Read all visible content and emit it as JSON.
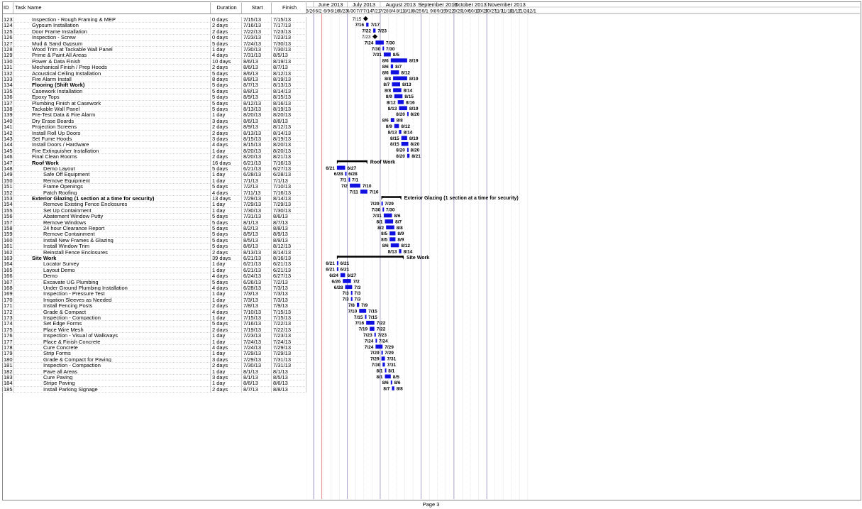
{
  "columns": {
    "id": "ID",
    "name": "Task Name",
    "duration": "Duration",
    "start": "Start",
    "finish": "Finish"
  },
  "months": [
    {
      "label": "June 2013",
      "start": "2013-06-01",
      "end": "2013-06-30"
    },
    {
      "label": "July 2013",
      "start": "2013-06-30",
      "end": "2013-07-28"
    },
    {
      "label": "August 2013",
      "start": "2013-07-28",
      "end": "2013-09-01"
    },
    {
      "label": "September 2013",
      "start": "2013-09-01",
      "end": "2013-09-29"
    },
    {
      "label": "October 2013",
      "start": "2013-09-29",
      "end": "2013-10-27"
    },
    {
      "label": "November 2013",
      "start": "2013-10-27",
      "end": "2013-11-30"
    }
  ],
  "weeks": [
    "5/26",
    "6/2",
    "6/9",
    "6/16",
    "6/23",
    "6/30",
    "7/7",
    "7/14",
    "7/21",
    "7/28",
    "8/4",
    "8/11",
    "8/18",
    "8/25",
    "9/1",
    "9/8",
    "9/15",
    "9/22",
    "9/29",
    "10/6",
    "10/13",
    "10/20",
    "10/27",
    "11/3",
    "11/10",
    "11/17",
    "11/24",
    "12/1"
  ],
  "timeline_start": "2013-05-26",
  "colors": {
    "bar": "#1010e0",
    "summary": "#000000",
    "milestone": "#000000",
    "today_line": "#e04040",
    "month_line": "#6a6ab0",
    "link": "#1010e0"
  },
  "footer": "Page 3",
  "tasks": [
    {
      "id": "123",
      "name": "Inspection - Rough Framing & MEP",
      "dur": "0 days",
      "start": "7/15/13",
      "finish": "7/15/13",
      "indent": 1,
      "type": "milestone",
      "s": "2013-07-15",
      "f": "2013-07-15",
      "ls": "7/15",
      "lf": ""
    },
    {
      "id": "124",
      "name": "Gypsum Installation",
      "dur": "2 days",
      "start": "7/16/13",
      "finish": "7/17/13",
      "indent": 1,
      "type": "task",
      "s": "2013-07-16",
      "f": "2013-07-17",
      "ls": "7/16",
      "lf": "7/17"
    },
    {
      "id": "125",
      "name": "Door Frame Installation",
      "dur": "2 days",
      "start": "7/22/13",
      "finish": "7/23/13",
      "indent": 1,
      "type": "task",
      "s": "2013-07-22",
      "f": "2013-07-23",
      "ls": "7/22",
      "lf": "7/23"
    },
    {
      "id": "126",
      "name": "Inspection - Screw",
      "dur": "0 days",
      "start": "7/23/13",
      "finish": "7/23/13",
      "indent": 1,
      "type": "milestone",
      "s": "2013-07-23",
      "f": "2013-07-23",
      "ls": "7/23",
      "lf": ""
    },
    {
      "id": "127",
      "name": "Mud & Sand Gypsum",
      "dur": "5 days",
      "start": "7/24/13",
      "finish": "7/30/13",
      "indent": 1,
      "type": "task",
      "s": "2013-07-24",
      "f": "2013-07-30",
      "ls": "7/24",
      "lf": "7/30"
    },
    {
      "id": "128",
      "name": "Wood Trim at Tackable Wall Panel",
      "dur": "1 day",
      "start": "7/30/13",
      "finish": "7/30/13",
      "indent": 1,
      "type": "task",
      "s": "2013-07-30",
      "f": "2013-07-30",
      "ls": "7/30",
      "lf": "7/30"
    },
    {
      "id": "129",
      "name": "Prime & Paint All Areas",
      "dur": "4 days",
      "start": "7/31/13",
      "finish": "8/5/13",
      "indent": 1,
      "type": "task",
      "s": "2013-07-31",
      "f": "2013-08-05",
      "ls": "7/31",
      "lf": "8/5"
    },
    {
      "id": "130",
      "name": "Power & Data Finish",
      "dur": "10 days",
      "start": "8/6/13",
      "finish": "8/19/13",
      "indent": 1,
      "type": "task",
      "s": "2013-08-06",
      "f": "2013-08-19",
      "ls": "8/6",
      "lf": "8/19"
    },
    {
      "id": "131",
      "name": "Mechanical Finish / Prep Hoods",
      "dur": "2 days",
      "start": "8/6/13",
      "finish": "8/7/13",
      "indent": 1,
      "type": "task",
      "s": "2013-08-06",
      "f": "2013-08-07",
      "ls": "8/6",
      "lf": "8/7"
    },
    {
      "id": "132",
      "name": "Acoustical Ceiling Installation",
      "dur": "5 days",
      "start": "8/6/13",
      "finish": "8/12/13",
      "indent": 1,
      "type": "task",
      "s": "2013-08-06",
      "f": "2013-08-12",
      "ls": "8/6",
      "lf": "8/12"
    },
    {
      "id": "133",
      "name": "Fire Alarm Install",
      "dur": "8 days",
      "start": "8/8/13",
      "finish": "8/19/13",
      "indent": 1,
      "type": "task",
      "s": "2013-08-08",
      "f": "2013-08-19",
      "ls": "8/8",
      "lf": "8/19"
    },
    {
      "id": "134",
      "name": "Flooring (Shift Work)",
      "dur": "5 days",
      "start": "8/7/13",
      "finish": "8/13/13",
      "indent": 1,
      "type": "task",
      "bold": true,
      "s": "2013-08-07",
      "f": "2013-08-13",
      "ls": "8/7",
      "lf": "8/13"
    },
    {
      "id": "135",
      "name": "Casework Installation",
      "dur": "5 days",
      "start": "8/8/13",
      "finish": "8/14/13",
      "indent": 1,
      "type": "task",
      "s": "2013-08-08",
      "f": "2013-08-14",
      "ls": "8/8",
      "lf": "8/14"
    },
    {
      "id": "136",
      "name": "Epoxy Tops",
      "dur": "5 days",
      "start": "8/9/13",
      "finish": "8/15/13",
      "indent": 1,
      "type": "task",
      "s": "2013-08-09",
      "f": "2013-08-15",
      "ls": "8/9",
      "lf": "8/15"
    },
    {
      "id": "137",
      "name": "Plumbing Finish at Casework",
      "dur": "5 days",
      "start": "8/12/13",
      "finish": "8/16/13",
      "indent": 1,
      "type": "task",
      "s": "2013-08-12",
      "f": "2013-08-16",
      "ls": "8/12",
      "lf": "8/16"
    },
    {
      "id": "138",
      "name": "Tackable Wall Panel",
      "dur": "5 days",
      "start": "8/13/13",
      "finish": "8/19/13",
      "indent": 1,
      "type": "task",
      "s": "2013-08-13",
      "f": "2013-08-19",
      "ls": "8/13",
      "lf": "8/19"
    },
    {
      "id": "139",
      "name": "Pre-Test Data & Fire Alarm",
      "dur": "1 day",
      "start": "8/20/13",
      "finish": "8/20/13",
      "indent": 1,
      "type": "task",
      "s": "2013-08-20",
      "f": "2013-08-20",
      "ls": "8/20",
      "lf": "8/20"
    },
    {
      "id": "140",
      "name": "Dry Erase Boards",
      "dur": "3 days",
      "start": "8/6/13",
      "finish": "8/8/13",
      "indent": 1,
      "type": "task",
      "s": "2013-08-06",
      "f": "2013-08-08",
      "ls": "8/6",
      "lf": "8/8"
    },
    {
      "id": "141",
      "name": "Projection Screens",
      "dur": "2 days",
      "start": "8/9/13",
      "finish": "8/12/13",
      "indent": 1,
      "type": "task",
      "s": "2013-08-09",
      "f": "2013-08-12",
      "ls": "8/9",
      "lf": "8/12"
    },
    {
      "id": "142",
      "name": "Install Roll Up Doors",
      "dur": "2 days",
      "start": "8/13/13",
      "finish": "8/14/13",
      "indent": 1,
      "type": "task",
      "s": "2013-08-13",
      "f": "2013-08-14",
      "ls": "8/13",
      "lf": "8/14"
    },
    {
      "id": "143",
      "name": "Set Fume Hoods",
      "dur": "3 days",
      "start": "8/15/13",
      "finish": "8/19/13",
      "indent": 1,
      "type": "task",
      "s": "2013-08-15",
      "f": "2013-08-19",
      "ls": "8/15",
      "lf": "8/19"
    },
    {
      "id": "144",
      "name": "Install Doors / Hardware",
      "dur": "4 days",
      "start": "8/15/13",
      "finish": "8/20/13",
      "indent": 1,
      "type": "task",
      "s": "2013-08-15",
      "f": "2013-08-20",
      "ls": "8/15",
      "lf": "8/20"
    },
    {
      "id": "145",
      "name": "Fire Extinguisher Installation",
      "dur": "1 day",
      "start": "8/20/13",
      "finish": "8/20/13",
      "indent": 1,
      "type": "task",
      "s": "2013-08-20",
      "f": "2013-08-20",
      "ls": "8/20",
      "lf": "8/20"
    },
    {
      "id": "146",
      "name": "Final Clean Rooms",
      "dur": "2 days",
      "start": "8/20/13",
      "finish": "8/21/13",
      "indent": 1,
      "type": "task",
      "s": "2013-08-20",
      "f": "2013-08-21",
      "ls": "8/20",
      "lf": "8/21"
    },
    {
      "id": "147",
      "name": "Roof Work",
      "dur": "16 days",
      "start": "6/21/13",
      "finish": "7/16/13",
      "indent": 1,
      "type": "summary",
      "bold": true,
      "s": "2013-06-21",
      "f": "2013-07-16",
      "ls": "",
      "lf": "Roof Work"
    },
    {
      "id": "148",
      "name": "Demo Layout",
      "dur": "5 days",
      "start": "6/21/13",
      "finish": "6/27/13",
      "indent": 2,
      "type": "task",
      "s": "2013-06-21",
      "f": "2013-06-27",
      "ls": "6/21",
      "lf": "6/27"
    },
    {
      "id": "149",
      "name": "Safe Off Equipment",
      "dur": "1 day",
      "start": "6/28/13",
      "finish": "6/28/13",
      "indent": 2,
      "type": "task",
      "s": "2013-06-28",
      "f": "2013-06-28",
      "ls": "6/28",
      "lf": "6/28"
    },
    {
      "id": "150",
      "name": "Remove Equipment",
      "dur": "1 day",
      "start": "7/1/13",
      "finish": "7/1/13",
      "indent": 2,
      "type": "task",
      "s": "2013-07-01",
      "f": "2013-07-01",
      "ls": "7/1",
      "lf": "7/1"
    },
    {
      "id": "151",
      "name": "Frame Openings",
      "dur": "5 days",
      "start": "7/2/13",
      "finish": "7/10/13",
      "indent": 2,
      "type": "task",
      "s": "2013-07-02",
      "f": "2013-07-10",
      "ls": "7/2",
      "lf": "7/10"
    },
    {
      "id": "152",
      "name": "Patch Roofing",
      "dur": "4 days",
      "start": "7/11/13",
      "finish": "7/16/13",
      "indent": 2,
      "type": "task",
      "s": "2013-07-11",
      "f": "2013-07-16",
      "ls": "7/11",
      "lf": "7/16"
    },
    {
      "id": "153",
      "name": "Exterior Glazing (1 section at a time for security)",
      "dur": "13 days",
      "start": "7/29/13",
      "finish": "8/14/13",
      "indent": 1,
      "type": "summary",
      "bold": true,
      "s": "2013-07-29",
      "f": "2013-08-14",
      "ls": "",
      "lf": "Exterior Glazing (1 section at a time for security)"
    },
    {
      "id": "154",
      "name": "Remove Existing Fence Enclosures",
      "dur": "1 day",
      "start": "7/29/13",
      "finish": "7/29/13",
      "indent": 2,
      "type": "task",
      "s": "2013-07-29",
      "f": "2013-07-29",
      "ls": "7/29",
      "lf": "7/29"
    },
    {
      "id": "155",
      "name": "Set Up Containment",
      "dur": "1 day",
      "start": "7/30/13",
      "finish": "7/30/13",
      "indent": 2,
      "type": "task",
      "s": "2013-07-30",
      "f": "2013-07-30",
      "ls": "7/30",
      "lf": "7/30"
    },
    {
      "id": "156",
      "name": "Abatement Window Putty",
      "dur": "5 days",
      "start": "7/31/13",
      "finish": "8/6/13",
      "indent": 2,
      "type": "task",
      "s": "2013-07-31",
      "f": "2013-08-06",
      "ls": "7/31",
      "lf": "8/6"
    },
    {
      "id": "157",
      "name": "Remove Windows",
      "dur": "5 days",
      "start": "8/1/13",
      "finish": "8/7/13",
      "indent": 2,
      "type": "task",
      "s": "2013-08-01",
      "f": "2013-08-07",
      "ls": "8/1",
      "lf": "8/7"
    },
    {
      "id": "158",
      "name": "24 hour Clearance Report",
      "dur": "5 days",
      "start": "8/2/13",
      "finish": "8/8/13",
      "indent": 2,
      "type": "task",
      "s": "2013-08-02",
      "f": "2013-08-08",
      "ls": "8/2",
      "lf": "8/8"
    },
    {
      "id": "159",
      "name": "Remove Containment",
      "dur": "5 days",
      "start": "8/5/13",
      "finish": "8/9/13",
      "indent": 2,
      "type": "task",
      "s": "2013-08-05",
      "f": "2013-08-09",
      "ls": "8/5",
      "lf": "8/9"
    },
    {
      "id": "160",
      "name": "Install New Frames & Glazing",
      "dur": "5 days",
      "start": "8/5/13",
      "finish": "8/9/13",
      "indent": 2,
      "type": "task",
      "s": "2013-08-05",
      "f": "2013-08-09",
      "ls": "8/5",
      "lf": "8/9"
    },
    {
      "id": "161",
      "name": "Install Window Trim",
      "dur": "5 days",
      "start": "8/6/13",
      "finish": "8/12/13",
      "indent": 2,
      "type": "task",
      "s": "2013-08-06",
      "f": "2013-08-12",
      "ls": "8/6",
      "lf": "8/12"
    },
    {
      "id": "162",
      "name": "Reinstall Fence Enclosures",
      "dur": "2 days",
      "start": "8/13/13",
      "finish": "8/14/13",
      "indent": 2,
      "type": "task",
      "s": "2013-08-13",
      "f": "2013-08-14",
      "ls": "8/13",
      "lf": "8/14"
    },
    {
      "id": "163",
      "name": "Site Work",
      "dur": "39 days",
      "start": "6/21/13",
      "finish": "8/16/13",
      "indent": 1,
      "type": "summary",
      "bold": true,
      "s": "2013-06-21",
      "f": "2013-08-16",
      "ls": "",
      "lf": "Site Work"
    },
    {
      "id": "164",
      "name": "Locator Survey",
      "dur": "1 day",
      "start": "6/21/13",
      "finish": "6/21/13",
      "indent": 2,
      "type": "task",
      "s": "2013-06-21",
      "f": "2013-06-21",
      "ls": "6/21",
      "lf": "6/21"
    },
    {
      "id": "165",
      "name": "Layout Demo",
      "dur": "1 day",
      "start": "6/21/13",
      "finish": "6/21/13",
      "indent": 2,
      "type": "task",
      "s": "2013-06-21",
      "f": "2013-06-21",
      "ls": "6/21",
      "lf": "6/21"
    },
    {
      "id": "166",
      "name": "Demo",
      "dur": "4 days",
      "start": "6/24/13",
      "finish": "6/27/13",
      "indent": 2,
      "type": "task",
      "s": "2013-06-24",
      "f": "2013-06-27",
      "ls": "6/24",
      "lf": "6/27"
    },
    {
      "id": "167",
      "name": "Excavate UG Plumbing",
      "dur": "5 days",
      "start": "6/26/13",
      "finish": "7/2/13",
      "indent": 2,
      "type": "task",
      "s": "2013-06-26",
      "f": "2013-07-02",
      "ls": "6/26",
      "lf": "7/2"
    },
    {
      "id": "168",
      "name": "Under Ground Plumbing Installation",
      "dur": "4 days",
      "start": "6/28/13",
      "finish": "7/3/13",
      "indent": 2,
      "type": "task",
      "s": "2013-06-28",
      "f": "2013-07-03",
      "ls": "6/28",
      "lf": "7/3"
    },
    {
      "id": "169",
      "name": "Inspection - Pressure Test",
      "dur": "1 day",
      "start": "7/3/13",
      "finish": "7/3/13",
      "indent": 2,
      "type": "task",
      "s": "2013-07-03",
      "f": "2013-07-03",
      "ls": "7/3",
      "lf": "7/3"
    },
    {
      "id": "170",
      "name": "Irrigation Sleeves as Needed",
      "dur": "1 day",
      "start": "7/3/13",
      "finish": "7/3/13",
      "indent": 2,
      "type": "task",
      "s": "2013-07-03",
      "f": "2013-07-03",
      "ls": "7/3",
      "lf": "7/3"
    },
    {
      "id": "171",
      "name": "Install Fencing Posts",
      "dur": "2 days",
      "start": "7/8/13",
      "finish": "7/9/13",
      "indent": 2,
      "type": "task",
      "s": "2013-07-08",
      "f": "2013-07-09",
      "ls": "7/8",
      "lf": "7/9"
    },
    {
      "id": "172",
      "name": "Grade & Compact",
      "dur": "4 days",
      "start": "7/10/13",
      "finish": "7/15/13",
      "indent": 2,
      "type": "task",
      "s": "2013-07-10",
      "f": "2013-07-15",
      "ls": "7/10",
      "lf": "7/15"
    },
    {
      "id": "173",
      "name": "Inspection - Compaction",
      "dur": "1 day",
      "start": "7/15/13",
      "finish": "7/15/13",
      "indent": 2,
      "type": "task",
      "s": "2013-07-15",
      "f": "2013-07-15",
      "ls": "7/15",
      "lf": "7/15"
    },
    {
      "id": "174",
      "name": "Set Edge Forms",
      "dur": "5 days",
      "start": "7/16/13",
      "finish": "7/22/13",
      "indent": 2,
      "type": "task",
      "s": "2013-07-16",
      "f": "2013-07-22",
      "ls": "7/16",
      "lf": "7/22"
    },
    {
      "id": "175",
      "name": "Place Wire Mesh",
      "dur": "2 days",
      "start": "7/19/13",
      "finish": "7/22/13",
      "indent": 2,
      "type": "task",
      "s": "2013-07-19",
      "f": "2013-07-22",
      "ls": "7/19",
      "lf": "7/22"
    },
    {
      "id": "176",
      "name": "Inspection - Visual of Walkways",
      "dur": "1 day",
      "start": "7/23/13",
      "finish": "7/23/13",
      "indent": 2,
      "type": "task",
      "s": "2013-07-23",
      "f": "2013-07-23",
      "ls": "7/23",
      "lf": "7/23"
    },
    {
      "id": "177",
      "name": "Place & Finish Concrete",
      "dur": "1 day",
      "start": "7/24/13",
      "finish": "7/24/13",
      "indent": 2,
      "type": "task",
      "s": "2013-07-24",
      "f": "2013-07-24",
      "ls": "7/24",
      "lf": "7/24"
    },
    {
      "id": "178",
      "name": "Cure Concrete",
      "dur": "4 days",
      "start": "7/24/13",
      "finish": "7/29/13",
      "indent": 2,
      "type": "task",
      "s": "2013-07-24",
      "f": "2013-07-29",
      "ls": "7/24",
      "lf": "7/29"
    },
    {
      "id": "179",
      "name": "Strip Forms",
      "dur": "1 day",
      "start": "7/29/13",
      "finish": "7/29/13",
      "indent": 2,
      "type": "task",
      "s": "2013-07-29",
      "f": "2013-07-29",
      "ls": "7/29",
      "lf": "7/29"
    },
    {
      "id": "180",
      "name": "Grade & Compact for Paving",
      "dur": "3 days",
      "start": "7/29/13",
      "finish": "7/31/13",
      "indent": 2,
      "type": "task",
      "s": "2013-07-29",
      "f": "2013-07-31",
      "ls": "7/29",
      "lf": "7/31"
    },
    {
      "id": "181",
      "name": "Inspection - Compaction",
      "dur": "2 days",
      "start": "7/30/13",
      "finish": "7/31/13",
      "indent": 2,
      "type": "task",
      "s": "2013-07-30",
      "f": "2013-07-31",
      "ls": "7/30",
      "lf": "7/31"
    },
    {
      "id": "182",
      "name": "Pave all Areas",
      "dur": "1 day",
      "start": "8/1/13",
      "finish": "8/1/13",
      "indent": 2,
      "type": "task",
      "s": "2013-08-01",
      "f": "2013-08-01",
      "ls": "8/1",
      "lf": "8/1"
    },
    {
      "id": "183",
      "name": "Cure Paving",
      "dur": "3 days",
      "start": "8/1/13",
      "finish": "8/5/13",
      "indent": 2,
      "type": "task",
      "s": "2013-08-01",
      "f": "2013-08-05",
      "ls": "8/1",
      "lf": "8/5"
    },
    {
      "id": "184",
      "name": "Stripe Paving",
      "dur": "1 day",
      "start": "8/6/13",
      "finish": "8/6/13",
      "indent": 2,
      "type": "task",
      "s": "2013-08-06",
      "f": "2013-08-06",
      "ls": "8/6",
      "lf": "8/6"
    },
    {
      "id": "185",
      "name": "Install Parking Signage",
      "dur": "2 days",
      "start": "8/7/13",
      "finish": "8/8/13",
      "indent": 2,
      "type": "task",
      "s": "2013-08-07",
      "f": "2013-08-08",
      "ls": "8/7",
      "lf": "8/8"
    }
  ]
}
